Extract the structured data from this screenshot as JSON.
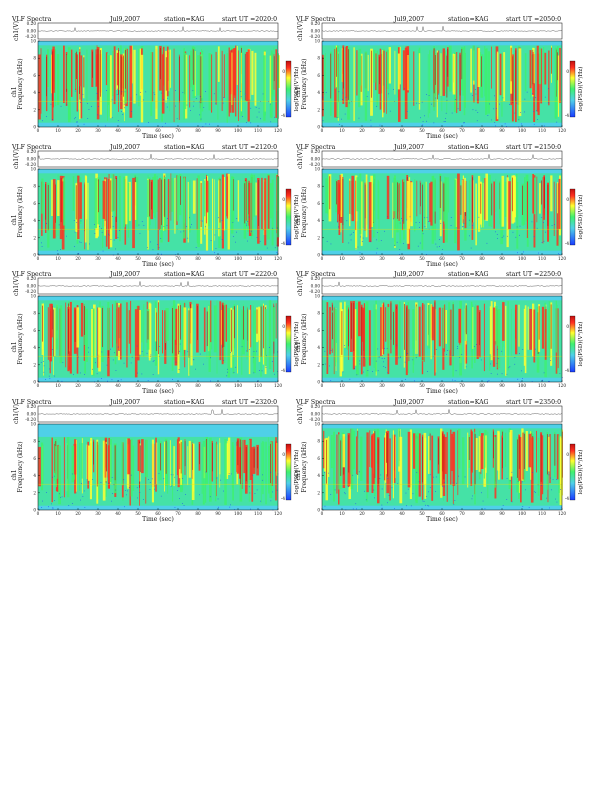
{
  "panel_common": {
    "title": "VLF Spectra",
    "date": "Jul9,2007",
    "station": "station=KAG",
    "start_label": "start UT =",
    "xlabel": "Time (sec)",
    "ylabel": "Frequency (kHz)",
    "ylabel_top": "ch1",
    "ch_label": "ch1(V)",
    "cb_label": "log(PSD)(V²/Hz)"
  },
  "colors": {
    "background": "#4fd0e8",
    "low": "#1a3cff",
    "mid": "#3ef070",
    "high": "#ffff30",
    "peak": "#ff3020",
    "strong": "#c01010",
    "line_yellow": "#f0e000"
  },
  "chart_data": [
    {
      "type": "heatmap",
      "title": "VLF Spectra",
      "date": "Jul9,2007",
      "station": "KAG",
      "start_ut": "2020:0",
      "xlabel": "Time (sec)",
      "ylabel": "Frequency (kHz)",
      "xlim": [
        0,
        120
      ],
      "ylim": [
        0,
        10
      ],
      "xticks": [
        0,
        10,
        20,
        30,
        40,
        50,
        60,
        70,
        80,
        90,
        100,
        110,
        120
      ],
      "yticks": [
        0,
        2,
        4,
        6,
        8,
        10
      ],
      "ch_ticks": [
        "0.20",
        "0.00",
        "-0.20"
      ],
      "colorbar_ticks": [
        "0",
        "-4"
      ],
      "colorbar_label": "log(PSD)(V²/Hz)",
      "band_kHz": [
        0.5,
        9.5
      ],
      "intensity": [
        0.72,
        0.55,
        0.83,
        0.62,
        0.9,
        0.48,
        0.77,
        0.69,
        0.58,
        0.86,
        0.66,
        0.74
      ]
    },
    {
      "type": "heatmap",
      "title": "VLF Spectra",
      "date": "Jul9,2007",
      "station": "KAG",
      "start_ut": "2050:0",
      "xlabel": "Time (sec)",
      "ylabel": "Frequency (kHz)",
      "xlim": [
        0,
        120
      ],
      "ylim": [
        0,
        10
      ],
      "xticks": [
        0,
        10,
        20,
        30,
        40,
        50,
        60,
        70,
        80,
        90,
        100,
        110,
        120
      ],
      "yticks": [
        0,
        2,
        4,
        6,
        8,
        10
      ],
      "ch_ticks": [
        "0.20",
        "0.00",
        "-0.20"
      ],
      "colorbar_ticks": [
        "0",
        "-4"
      ],
      "colorbar_label": "log(PSD)(V²/Hz)",
      "band_kHz": [
        0.5,
        9.5
      ],
      "intensity": [
        0.6,
        0.71,
        0.54,
        0.79,
        0.66,
        0.58,
        0.73,
        0.62,
        0.7,
        0.57,
        0.8,
        0.64
      ]
    },
    {
      "type": "heatmap",
      "title": "VLF Spectra",
      "date": "Jul9,2007",
      "station": "KAG",
      "start_ut": "2120:0",
      "xlabel": "Time (sec)",
      "ylabel": "Frequency (kHz)",
      "xlim": [
        0,
        120
      ],
      "ylim": [
        0,
        10
      ],
      "xticks": [
        0,
        10,
        20,
        30,
        40,
        50,
        60,
        70,
        80,
        90,
        100,
        110,
        120
      ],
      "yticks": [
        0,
        2,
        4,
        6,
        8,
        10
      ],
      "ch_ticks": [
        "0.20",
        "0.00",
        "-0.20"
      ],
      "colorbar_ticks": [
        "0",
        "-4"
      ],
      "colorbar_label": "log(PSD)(V²/Hz)",
      "band_kHz": [
        0.5,
        9.5
      ],
      "intensity": [
        0.64,
        0.72,
        0.58,
        0.8,
        0.61,
        0.69,
        0.75,
        0.56,
        0.67,
        0.78,
        0.63,
        0.7
      ]
    },
    {
      "type": "heatmap",
      "title": "VLF Spectra",
      "date": "Jul9,2007",
      "station": "KAG",
      "start_ut": "2150:0",
      "xlabel": "Time (sec)",
      "ylabel": "Frequency (kHz)",
      "xlim": [
        0,
        120
      ],
      "ylim": [
        0,
        10
      ],
      "xticks": [
        0,
        10,
        20,
        30,
        40,
        50,
        60,
        70,
        80,
        90,
        100,
        110,
        120
      ],
      "yticks": [
        0,
        2,
        4,
        6,
        8,
        10
      ],
      "ch_ticks": [
        "0.20",
        "0.00",
        "-0.20"
      ],
      "colorbar_ticks": [
        "0",
        "-4"
      ],
      "colorbar_label": "log(PSD)(V²/Hz)",
      "band_kHz": [
        0.5,
        9.5
      ],
      "intensity": [
        0.7,
        0.62,
        0.77,
        0.68,
        0.85,
        0.6,
        0.74,
        0.81,
        0.65,
        0.72,
        0.59,
        0.76
      ]
    },
    {
      "type": "heatmap",
      "title": "VLF Spectra",
      "date": "Jul9,2007",
      "station": "KAG",
      "start_ut": "2220:0",
      "xlabel": "Time (sec)",
      "ylabel": "Frequency (kHz)",
      "xlim": [
        0,
        120
      ],
      "ylim": [
        0,
        10
      ],
      "xticks": [
        0,
        10,
        20,
        30,
        40,
        50,
        60,
        70,
        80,
        90,
        100,
        110,
        120
      ],
      "yticks": [
        0,
        2,
        4,
        6,
        8,
        10
      ],
      "ch_ticks": [
        "0.20",
        "0.00",
        "-0.20"
      ],
      "colorbar_ticks": [
        "0",
        "-4"
      ],
      "colorbar_label": "log(PSD)(V²/Hz)",
      "band_kHz": [
        0.5,
        9.5
      ],
      "intensity": [
        0.66,
        0.74,
        0.6,
        0.71,
        0.79,
        0.63,
        0.68,
        0.76,
        0.58,
        0.82,
        0.65,
        0.7
      ]
    },
    {
      "type": "heatmap",
      "title": "VLF Spectra",
      "date": "Jul9,2007",
      "station": "KAG",
      "start_ut": "2250:0",
      "xlabel": "Time (sec)",
      "ylabel": "Frequency (kHz)",
      "xlim": [
        0,
        120
      ],
      "ylim": [
        0,
        10
      ],
      "xticks": [
        0,
        10,
        20,
        30,
        40,
        50,
        60,
        70,
        80,
        90,
        100,
        110,
        120
      ],
      "yticks": [
        0,
        2,
        4,
        6,
        8,
        10
      ],
      "ch_ticks": [
        "0.20",
        "0.00",
        "-0.20"
      ],
      "colorbar_ticks": [
        "0",
        "-4"
      ],
      "colorbar_label": "log(PSD)(V²/Hz)",
      "band_kHz": [
        0.5,
        9.5
      ],
      "intensity": [
        0.75,
        0.68,
        0.82,
        0.7,
        0.64,
        0.79,
        0.73,
        0.66,
        0.77,
        0.61,
        0.72,
        0.69
      ]
    },
    {
      "type": "heatmap",
      "title": "VLF Spectra",
      "date": "Jul9,2007",
      "station": "KAG",
      "start_ut": "2320:0",
      "xlabel": "Time (sec)",
      "ylabel": "Frequency (kHz)",
      "xlim": [
        0,
        120
      ],
      "ylim": [
        0,
        10
      ],
      "xticks": [
        0,
        10,
        20,
        30,
        40,
        50,
        60,
        70,
        80,
        90,
        100,
        110,
        120
      ],
      "yticks": [
        0,
        2,
        4,
        6,
        8,
        10
      ],
      "ch_ticks": [
        "0.20",
        "0.00",
        "-0.20"
      ],
      "colorbar_ticks": [
        "0",
        "-4"
      ],
      "colorbar_label": "log(PSD)(V²/Hz)",
      "band_kHz": [
        0.5,
        8.5
      ],
      "intensity": [
        0.63,
        0.7,
        0.66,
        0.74,
        0.6,
        0.72,
        0.68,
        0.65,
        0.71,
        0.62,
        0.69,
        0.67
      ]
    },
    {
      "type": "heatmap",
      "title": "VLF Spectra",
      "date": "Jul9,2007",
      "station": "KAG",
      "start_ut": "2350:0",
      "xlabel": "Time (sec)",
      "ylabel": "Frequency (kHz)",
      "xlim": [
        0,
        120
      ],
      "ylim": [
        0,
        10
      ],
      "xticks": [
        0,
        10,
        20,
        30,
        40,
        50,
        60,
        70,
        80,
        90,
        100,
        110,
        120
      ],
      "yticks": [
        0,
        2,
        4,
        6,
        8,
        10
      ],
      "ch_ticks": [
        "0.20",
        "0.00",
        "-0.20"
      ],
      "colorbar_ticks": [
        "0",
        "-4"
      ],
      "colorbar_label": "log(PSD)(V²/Hz)",
      "band_kHz": [
        0.5,
        9.5
      ],
      "intensity": [
        0.68,
        0.73,
        0.61,
        0.78,
        0.7,
        0.64,
        0.8,
        0.67,
        0.75,
        0.62,
        0.84,
        0.71
      ]
    }
  ]
}
